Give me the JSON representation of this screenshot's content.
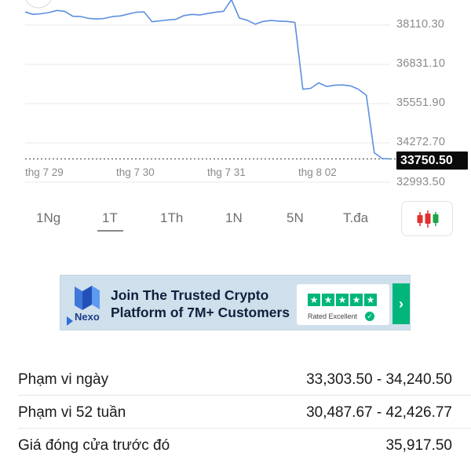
{
  "chart_data": {
    "type": "line",
    "y_ticks": [
      "38110.30",
      "36831.10",
      "35551.90",
      "34272.70",
      "32993.50"
    ],
    "x_ticks": [
      "thg 7 29",
      "thg 7 30",
      "thg 7 31",
      "thg 8 02"
    ],
    "current_price": "33750.50",
    "line_color": "#5b8fe0",
    "ylim": [
      32993.5,
      38110.3
    ],
    "series": [
      {
        "values": [
          38540,
          38460,
          38480,
          38520,
          38590,
          38560,
          38400,
          38390,
          38330,
          38310,
          38330,
          38390,
          38410,
          38470,
          38530,
          38540,
          38220,
          38250,
          38280,
          38300,
          38420,
          38460,
          38440,
          38490,
          38530,
          38560,
          38940,
          38340,
          38270,
          38140,
          38230,
          38260,
          38240,
          38230,
          38200,
          36020,
          36050,
          36230,
          36110,
          36150,
          36160,
          36130,
          36020,
          35820,
          33950,
          33760,
          33750
        ]
      }
    ]
  },
  "tabs": {
    "items": [
      "1Ng",
      "1T",
      "1Th",
      "1N",
      "5N",
      "T.đa"
    ],
    "active": "1T",
    "chart_type_icon": "candlestick-icon"
  },
  "ad": {
    "brand": "Nexo",
    "line1": "Join The Trusted Crypto",
    "line2": "Platform of 7M+ Customers",
    "rating": "Rated Excellent",
    "accent": "#00b67a",
    "arrow": "›"
  },
  "stats": [
    {
      "label": "Phạm vi ngày",
      "value": "33,303.50 - 34,240.50"
    },
    {
      "label": "Phạm vi 52 tuần",
      "value": "30,487.67 - 42,426.77"
    },
    {
      "label": "Giá đóng cửa trước đó",
      "value": "35,917.50"
    }
  ]
}
